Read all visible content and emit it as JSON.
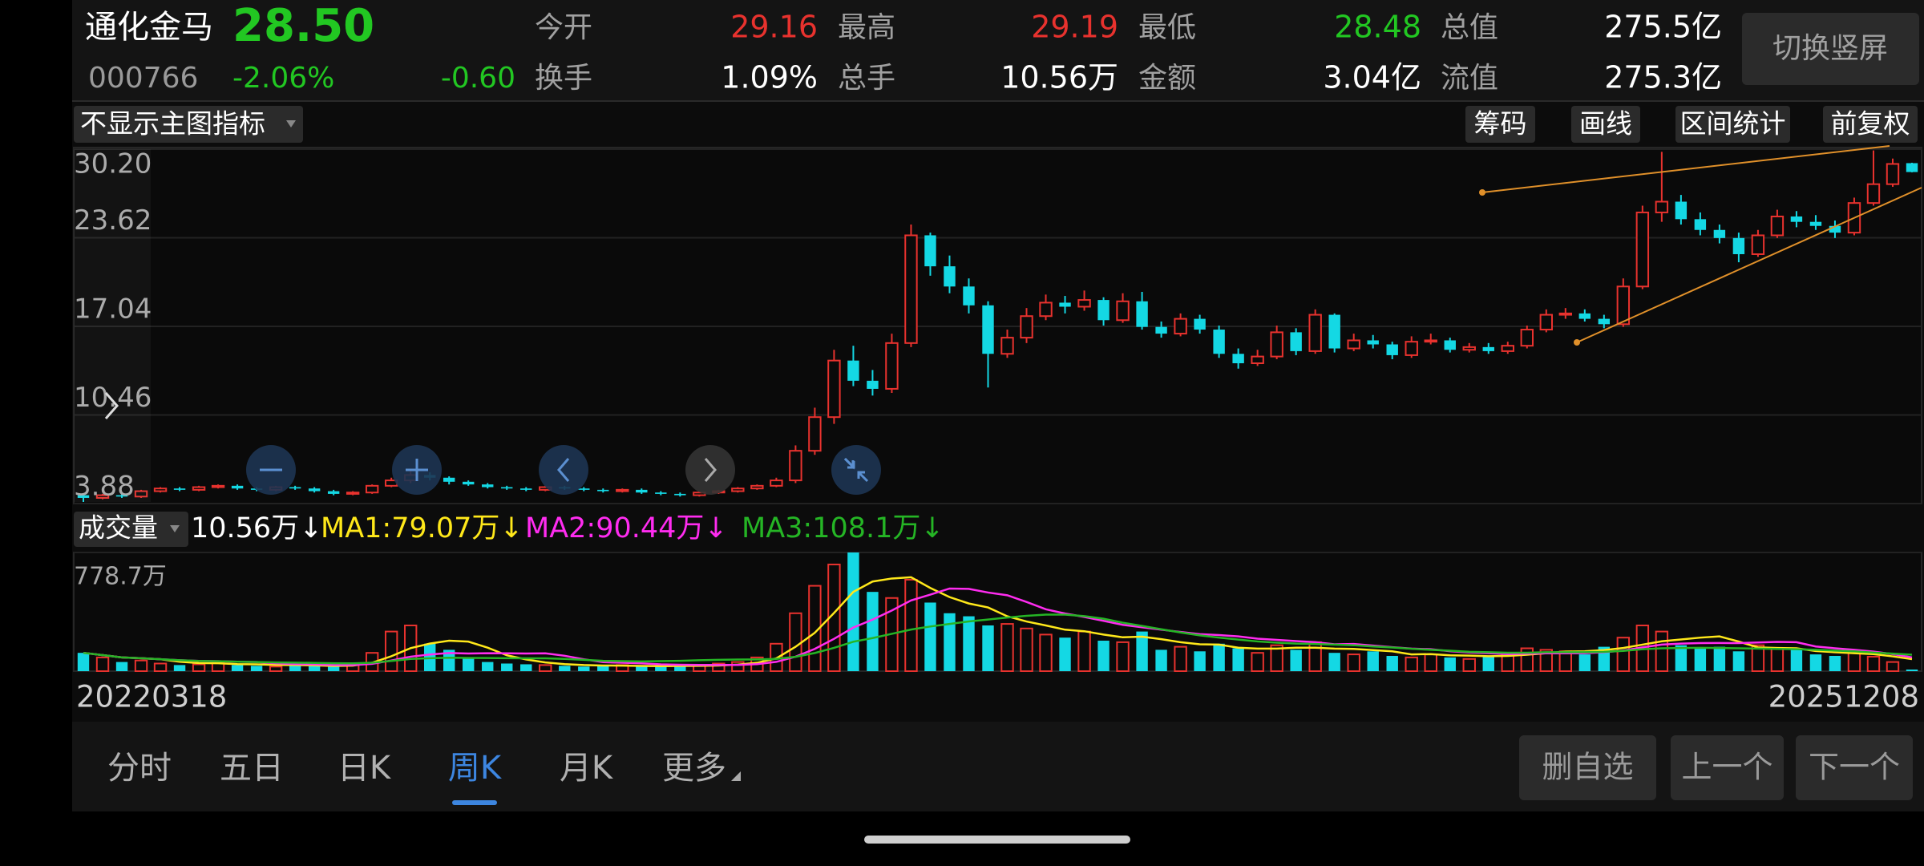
{
  "header": {
    "name": "通化金马",
    "price": "28.50",
    "code": "000766",
    "change_pct": "-2.06%",
    "change": "-0.60",
    "stats": [
      {
        "label": "今开",
        "value": "29.16"
      },
      {
        "label": "最高",
        "value": "29.19"
      },
      {
        "label": "最低",
        "value": "28.48"
      },
      {
        "label": "总值",
        "value": "275.5亿"
      },
      {
        "label": "换手",
        "value": "1.09%"
      },
      {
        "label": "总手",
        "value": "10.56万"
      },
      {
        "label": "金额",
        "value": "3.04亿"
      },
      {
        "label": "流值",
        "value": "275.3亿"
      }
    ],
    "orientation_button": "切换竖屏"
  },
  "toolbar": {
    "indicator": "不显示主图指标",
    "buttons": [
      "筹码",
      "画线",
      "区间统计",
      "前复权"
    ]
  },
  "chart_data": [
    {
      "type": "candlestick",
      "up_color": "#e8322e",
      "down_color": "#14d8e4",
      "grid": true,
      "ylim": [
        3.88,
        30.2
      ],
      "yticks": [
        {
          "value": 30.2,
          "label": "30.20"
        },
        23.62,
        17.04,
        10.46,
        3.88
      ],
      "open": [
        4.5,
        4.3,
        4.5,
        4.4,
        4.8,
        5.0,
        4.9,
        5.1,
        5.2,
        5.0,
        4.9,
        5.1,
        5.0,
        4.8,
        4.6,
        4.7,
        5.2,
        5.6,
        6.0,
        5.8,
        5.5,
        5.3,
        5.1,
        5.0,
        4.9,
        5.1,
        5.0,
        4.9,
        4.8,
        4.9,
        4.7,
        4.6,
        4.5,
        4.7,
        4.8,
        5.0,
        5.2,
        5.6,
        7.8,
        10.3,
        14.5,
        13.0,
        12.4,
        15.8,
        23.8,
        21.5,
        20.0,
        18.6,
        15.0,
        16.2,
        17.8,
        18.8,
        18.5,
        19.0,
        17.5,
        18.9,
        17.0,
        16.5,
        17.6,
        16.8,
        15.0,
        14.3,
        14.8,
        16.6,
        15.2,
        17.9,
        15.4,
        16.0,
        15.7,
        14.9,
        15.9,
        16.0,
        15.3,
        15.5,
        15.2,
        15.6,
        16.8,
        17.9,
        18.0,
        17.6,
        17.2,
        20.0,
        25.5,
        26.3,
        25.0,
        24.2,
        23.6,
        22.4,
        23.8,
        25.2,
        24.8,
        24.5,
        24.0,
        26.2,
        27.6,
        29.16
      ],
      "high": [
        4.6,
        4.6,
        4.6,
        4.9,
        5.1,
        5.1,
        5.2,
        5.3,
        5.3,
        5.1,
        5.2,
        5.2,
        5.1,
        4.9,
        4.8,
        5.3,
        5.8,
        6.3,
        6.2,
        5.9,
        5.6,
        5.4,
        5.2,
        5.1,
        5.2,
        5.2,
        5.1,
        5.0,
        5.0,
        5.0,
        4.8,
        4.7,
        4.8,
        4.9,
        5.1,
        5.3,
        5.8,
        8.2,
        11.0,
        15.3,
        15.6,
        13.8,
        16.5,
        24.6,
        24.0,
        22.3,
        20.6,
        18.9,
        16.8,
        18.4,
        19.4,
        19.3,
        19.7,
        19.2,
        19.5,
        19.6,
        17.4,
        18.0,
        17.9,
        17.1,
        15.4,
        15.3,
        17.1,
        16.9,
        18.3,
        18.0,
        16.5,
        16.4,
        15.9,
        16.3,
        16.5,
        16.2,
        15.8,
        15.8,
        15.9,
        17.1,
        18.3,
        18.4,
        18.3,
        17.9,
        20.6,
        26.0,
        30.0,
        26.8,
        25.5,
        24.6,
        24.0,
        24.2,
        25.7,
        25.6,
        25.3,
        24.9,
        26.6,
        30.1,
        29.5,
        29.19
      ],
      "low": [
        4.0,
        4.2,
        4.3,
        4.3,
        4.7,
        4.8,
        4.8,
        5.0,
        4.9,
        4.8,
        4.8,
        4.9,
        4.7,
        4.5,
        4.5,
        4.6,
        5.1,
        5.4,
        5.6,
        5.3,
        5.2,
        5.0,
        4.9,
        4.8,
        4.8,
        4.9,
        4.8,
        4.7,
        4.7,
        4.6,
        4.5,
        4.4,
        4.4,
        4.6,
        4.7,
        4.9,
        5.1,
        5.4,
        7.5,
        9.8,
        12.6,
        11.9,
        12.1,
        15.5,
        20.8,
        19.5,
        18.0,
        12.5,
        14.7,
        15.8,
        17.5,
        18.0,
        18.2,
        17.1,
        17.3,
        16.8,
        16.2,
        16.3,
        16.5,
        14.7,
        13.9,
        14.1,
        14.6,
        14.9,
        15.0,
        15.1,
        15.2,
        15.4,
        14.6,
        14.7,
        15.7,
        15.1,
        15.1,
        15.0,
        15.0,
        15.4,
        16.6,
        17.6,
        17.4,
        16.9,
        17.0,
        19.8,
        24.8,
        24.6,
        23.8,
        23.2,
        21.8,
        22.2,
        23.6,
        24.4,
        24.2,
        23.6,
        23.8,
        26.0,
        27.4,
        28.48
      ],
      "close": [
        4.3,
        4.5,
        4.4,
        4.8,
        5.0,
        4.9,
        5.1,
        5.2,
        5.0,
        4.9,
        5.1,
        5.0,
        4.8,
        4.6,
        4.7,
        5.2,
        5.6,
        6.0,
        5.8,
        5.5,
        5.3,
        5.1,
        5.0,
        4.9,
        5.1,
        5.0,
        4.9,
        4.8,
        4.9,
        4.7,
        4.6,
        4.5,
        4.7,
        4.8,
        5.0,
        5.2,
        5.6,
        7.8,
        10.3,
        14.5,
        13.0,
        12.4,
        15.8,
        23.8,
        21.5,
        20.0,
        18.6,
        15.0,
        16.2,
        17.8,
        18.8,
        18.5,
        19.0,
        17.5,
        18.9,
        17.0,
        16.5,
        17.6,
        16.8,
        15.0,
        14.3,
        14.8,
        16.6,
        15.2,
        17.9,
        15.4,
        16.0,
        15.7,
        14.9,
        15.9,
        16.0,
        15.3,
        15.5,
        15.2,
        15.6,
        16.8,
        17.9,
        18.0,
        17.6,
        17.2,
        20.0,
        25.5,
        26.3,
        25.0,
        24.2,
        23.6,
        22.4,
        23.8,
        25.2,
        24.8,
        24.5,
        24.0,
        26.2,
        27.6,
        29.1,
        28.5
      ]
    },
    {
      "type": "bar",
      "title": "成交量",
      "ylim": [
        0,
        778.7
      ],
      "yticks": [
        {
          "value": 778.7,
          "label": "778.7万"
        }
      ],
      "values": [
        120,
        90,
        60,
        70,
        50,
        40,
        45,
        55,
        40,
        35,
        30,
        40,
        35,
        30,
        45,
        120,
        260,
        300,
        180,
        140,
        90,
        60,
        50,
        45,
        40,
        35,
        30,
        35,
        40,
        30,
        30,
        35,
        40,
        50,
        60,
        90,
        180,
        380,
        560,
        700,
        778.7,
        520,
        480,
        600,
        450,
        380,
        360,
        300,
        310,
        280,
        240,
        220,
        260,
        200,
        190,
        260,
        140,
        160,
        130,
        180,
        150,
        120,
        170,
        140,
        190,
        120,
        110,
        130,
        100,
        90,
        110,
        90,
        80,
        100,
        120,
        150,
        140,
        130,
        110,
        160,
        220,
        300,
        260,
        170,
        150,
        160,
        130,
        170,
        150,
        140,
        110,
        100,
        120,
        95,
        60,
        10.56
      ],
      "legend": [
        {
          "text": "10.56万↓",
          "color": "#ffffff"
        },
        {
          "text": "MA1:79.07万↓",
          "color": "#ffe81a"
        },
        {
          "text": "MA2:90.44万↓",
          "color": "#ff2cf0"
        },
        {
          "text": "MA3:108.1万↓",
          "color": "#25b525"
        }
      ],
      "lines": [
        {
          "color": "#ffe81a",
          "values": [
            120,
            105,
            90,
            85,
            78,
            62,
            53,
            52,
            46,
            45,
            41,
            40,
            38,
            34,
            36,
            55,
            98,
            151,
            181,
            200,
            194,
            154,
            104,
            77,
            57,
            46,
            40,
            37,
            36,
            34,
            33,
            34,
            35,
            37,
            43,
            55,
            84,
            160,
            252,
            382,
            520,
            588,
            608,
            616,
            546,
            486,
            444,
            418,
            360,
            326,
            300,
            272,
            262,
            240,
            222,
            226,
            210,
            190,
            176,
            174,
            154,
            148,
            148,
            154,
            154,
            148,
            146,
            138,
            130,
            110,
            112,
            104,
            102,
            98,
            100,
            108,
            118,
            128,
            130,
            138,
            152,
            174,
            196,
            208,
            220,
            228,
            194,
            156,
            152,
            150,
            132,
            124,
            118,
            112,
            97,
            79.07
          ]
        },
        {
          "color": "#ff2cf0",
          "values": [
            120,
            105,
            90,
            85,
            78,
            72,
            67,
            65,
            62,
            60,
            52,
            47,
            45,
            41,
            40,
            48,
            70,
            95,
            109,
            119,
            116,
            118,
            117,
            116,
            117,
            101,
            78,
            59,
            55,
            51,
            45,
            42,
            41,
            41,
            41,
            46,
            61,
            95,
            146,
            212,
            286,
            338,
            398,
            464,
            502,
            542,
            540,
            516,
            498,
            454,
            406,
            378,
            356,
            330,
            304,
            288,
            272,
            257,
            243,
            237,
            228,
            213,
            205,
            197,
            190,
            176,
            178,
            168,
            157,
            148,
            144,
            131,
            122,
            118,
            112,
            115,
            117,
            117,
            118,
            124,
            135,
            156,
            174,
            181,
            184,
            185,
            184,
            188,
            192,
            190,
            162,
            150,
            140,
            128,
            112,
            90.44
          ]
        },
        {
          "color": "#25b525",
          "values": [
            120,
            105,
            90,
            85,
            78,
            72,
            67,
            65,
            62,
            60,
            57,
            56,
            54,
            52,
            51,
            55,
            67,
            80,
            85,
            88,
            87,
            86,
            85,
            84,
            84,
            80,
            74,
            68,
            66,
            64,
            66,
            68,
            72,
            74,
            76,
            77,
            80,
            94,
            119,
            153,
            193,
            217,
            245,
            273,
            293,
            310,
            326,
            339,
            352,
            363,
            371,
            371,
            361,
            344,
            318,
            297,
            275,
            254,
            235,
            220,
            207,
            195,
            187,
            181,
            178,
            174,
            170,
            162,
            155,
            147,
            140,
            134,
            127,
            124,
            121,
            121,
            124,
            124,
            124,
            127,
            133,
            144,
            150,
            152,
            153,
            152,
            150,
            148,
            146,
            144,
            140,
            135,
            130,
            122,
            115,
            108.1
          ]
        }
      ],
      "x_labels": [
        "20220318",
        "20251208"
      ]
    }
  ],
  "tabs": {
    "items": [
      "分时",
      "五日",
      "日K",
      "周K",
      "月K",
      "更多"
    ],
    "active": 3
  },
  "actions": [
    "删自选",
    "上一个",
    "下一个"
  ]
}
